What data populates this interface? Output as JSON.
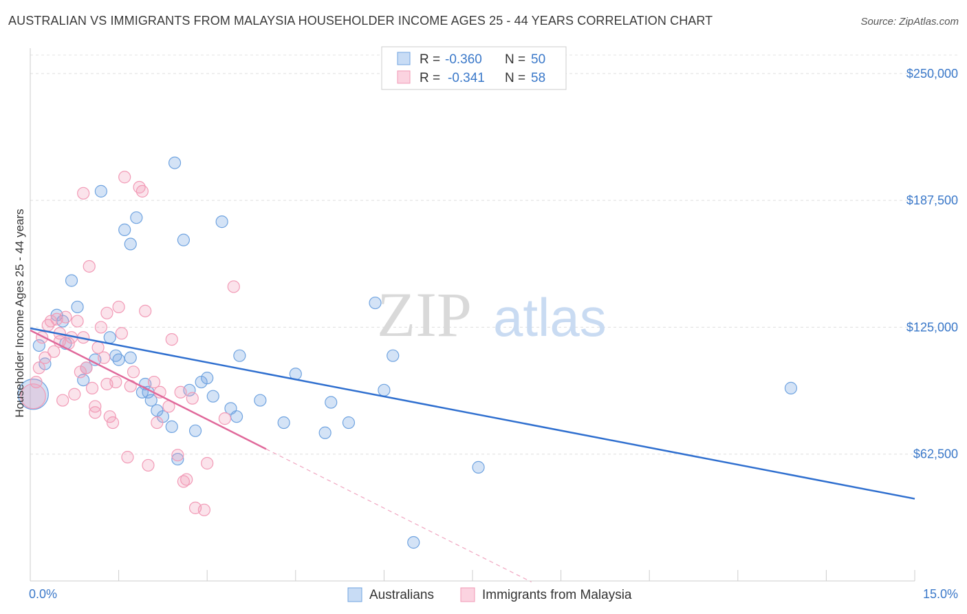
{
  "title": "AUSTRALIAN VS IMMIGRANTS FROM MALAYSIA HOUSEHOLDER INCOME AGES 25 - 44 YEARS CORRELATION CHART",
  "source": "Source: ZipAtlas.com",
  "watermark": {
    "zip": "ZIP",
    "atlas": "atlas"
  },
  "legend": {
    "r_label": "R =",
    "n_label": "N =",
    "series": [
      {
        "r": "-0.360",
        "n": "50",
        "color": "#6fa3e0"
      },
      {
        "r": "-0.341",
        "n": "58",
        "color": "#f29ab6"
      }
    ]
  },
  "chart_data": {
    "type": "scatter",
    "title": "AUSTRALIAN VS IMMIGRANTS FROM MALAYSIA HOUSEHOLDER INCOME AGES 25 - 44 YEARS CORRELATION CHART",
    "xlabel": "",
    "ylabel": "Householder Income Ages 25 - 44 years",
    "xlim": [
      0,
      15
    ],
    "ylim": [
      0,
      262500
    ],
    "x_tick_labels": [
      "0.0%",
      "15.0%"
    ],
    "y_ticks": [
      62500,
      125000,
      187500,
      250000
    ],
    "y_tick_labels": [
      "$62,500",
      "$125,000",
      "$187,500",
      "$250,000"
    ],
    "grid": true,
    "legend_position": "top-center",
    "series": [
      {
        "name": "Australians",
        "color": "#6fa3e0",
        "trend": {
          "x": [
            0.0,
            15.0
          ],
          "y": [
            124500,
            40500
          ]
        },
        "points": [
          {
            "x": 0.05,
            "y": 92000,
            "s": 22
          },
          {
            "x": 0.15,
            "y": 116000
          },
          {
            "x": 0.25,
            "y": 107000
          },
          {
            "x": 0.45,
            "y": 131000
          },
          {
            "x": 0.55,
            "y": 128000
          },
          {
            "x": 0.7,
            "y": 148000
          },
          {
            "x": 0.8,
            "y": 135000
          },
          {
            "x": 0.95,
            "y": 105000
          },
          {
            "x": 0.9,
            "y": 99000
          },
          {
            "x": 1.1,
            "y": 109000
          },
          {
            "x": 1.2,
            "y": 192000
          },
          {
            "x": 1.35,
            "y": 120000
          },
          {
            "x": 1.45,
            "y": 111000
          },
          {
            "x": 1.5,
            "y": 109000
          },
          {
            "x": 1.6,
            "y": 173000
          },
          {
            "x": 1.7,
            "y": 166000
          },
          {
            "x": 1.8,
            "y": 179000
          },
          {
            "x": 1.9,
            "y": 93000
          },
          {
            "x": 1.95,
            "y": 97000
          },
          {
            "x": 2.05,
            "y": 89000
          },
          {
            "x": 2.15,
            "y": 84000
          },
          {
            "x": 2.25,
            "y": 81000
          },
          {
            "x": 2.4,
            "y": 76000
          },
          {
            "x": 2.45,
            "y": 206000
          },
          {
            "x": 2.5,
            "y": 60000
          },
          {
            "x": 2.6,
            "y": 168000
          },
          {
            "x": 2.7,
            "y": 94000
          },
          {
            "x": 2.8,
            "y": 74000
          },
          {
            "x": 2.9,
            "y": 98000
          },
          {
            "x": 3.0,
            "y": 100000
          },
          {
            "x": 3.1,
            "y": 91000
          },
          {
            "x": 3.25,
            "y": 177000
          },
          {
            "x": 3.4,
            "y": 85000
          },
          {
            "x": 3.5,
            "y": 81000
          },
          {
            "x": 3.55,
            "y": 111000
          },
          {
            "x": 3.9,
            "y": 89000
          },
          {
            "x": 4.3,
            "y": 78000
          },
          {
            "x": 4.5,
            "y": 102000
          },
          {
            "x": 5.0,
            "y": 73000
          },
          {
            "x": 5.1,
            "y": 88000
          },
          {
            "x": 5.4,
            "y": 78000
          },
          {
            "x": 5.85,
            "y": 137000
          },
          {
            "x": 6.0,
            "y": 94000
          },
          {
            "x": 6.15,
            "y": 111000
          },
          {
            "x": 7.6,
            "y": 56000
          },
          {
            "x": 6.5,
            "y": 19000
          },
          {
            "x": 1.7,
            "y": 110000
          },
          {
            "x": 0.6,
            "y": 117000
          },
          {
            "x": 2.0,
            "y": 93000
          },
          {
            "x": 12.9,
            "y": 95000
          }
        ]
      },
      {
        "name": "Immigrants from Malaysia",
        "color": "#f29ab6",
        "trend": {
          "x": [
            0.0,
            4.0
          ],
          "y": [
            123500,
            65000
          ]
        },
        "trend_ext": {
          "x": [
            4.0,
            8.5
          ],
          "y": [
            65000,
            -500
          ]
        },
        "points": [
          {
            "x": 0.05,
            "y": 91000,
            "s": 18
          },
          {
            "x": 0.1,
            "y": 98000
          },
          {
            "x": 0.15,
            "y": 105000
          },
          {
            "x": 0.2,
            "y": 120000
          },
          {
            "x": 0.25,
            "y": 110000
          },
          {
            "x": 0.3,
            "y": 126000
          },
          {
            "x": 0.35,
            "y": 128000
          },
          {
            "x": 0.4,
            "y": 113000
          },
          {
            "x": 0.45,
            "y": 129000
          },
          {
            "x": 0.5,
            "y": 118000
          },
          {
            "x": 0.55,
            "y": 89000
          },
          {
            "x": 0.6,
            "y": 130000
          },
          {
            "x": 0.7,
            "y": 120000
          },
          {
            "x": 0.75,
            "y": 92000
          },
          {
            "x": 0.8,
            "y": 128000
          },
          {
            "x": 0.85,
            "y": 103000
          },
          {
            "x": 0.9,
            "y": 120000
          },
          {
            "x": 0.95,
            "y": 105000
          },
          {
            "x": 0.9,
            "y": 191000
          },
          {
            "x": 1.0,
            "y": 155000
          },
          {
            "x": 1.05,
            "y": 95000
          },
          {
            "x": 1.1,
            "y": 86000
          },
          {
            "x": 1.1,
            "y": 83000
          },
          {
            "x": 1.15,
            "y": 115000
          },
          {
            "x": 1.2,
            "y": 125000
          },
          {
            "x": 1.25,
            "y": 110000
          },
          {
            "x": 1.3,
            "y": 132000
          },
          {
            "x": 1.35,
            "y": 81000
          },
          {
            "x": 1.4,
            "y": 78000
          },
          {
            "x": 1.5,
            "y": 135000
          },
          {
            "x": 1.55,
            "y": 122000
          },
          {
            "x": 1.6,
            "y": 199000
          },
          {
            "x": 1.65,
            "y": 61000
          },
          {
            "x": 1.7,
            "y": 96000
          },
          {
            "x": 1.85,
            "y": 194000
          },
          {
            "x": 1.9,
            "y": 192000
          },
          {
            "x": 1.95,
            "y": 133000
          },
          {
            "x": 2.0,
            "y": 57000
          },
          {
            "x": 2.1,
            "y": 98000
          },
          {
            "x": 2.15,
            "y": 78000
          },
          {
            "x": 2.2,
            "y": 93000
          },
          {
            "x": 2.35,
            "y": 86000
          },
          {
            "x": 2.4,
            "y": 119000
          },
          {
            "x": 2.5,
            "y": 62000
          },
          {
            "x": 2.55,
            "y": 93000
          },
          {
            "x": 2.6,
            "y": 49000
          },
          {
            "x": 2.65,
            "y": 50000
          },
          {
            "x": 2.75,
            "y": 90000
          },
          {
            "x": 2.8,
            "y": 36000
          },
          {
            "x": 2.95,
            "y": 35000
          },
          {
            "x": 3.0,
            "y": 58000
          },
          {
            "x": 3.3,
            "y": 80000
          },
          {
            "x": 3.45,
            "y": 145000
          },
          {
            "x": 1.3,
            "y": 97000
          },
          {
            "x": 0.65,
            "y": 117000
          },
          {
            "x": 1.75,
            "y": 103000
          },
          {
            "x": 1.45,
            "y": 98000
          },
          {
            "x": 0.5,
            "y": 122000
          }
        ]
      }
    ]
  },
  "bottom_legend": [
    {
      "label": "Australians",
      "color": "#6fa3e0"
    },
    {
      "label": "Immigrants from Malaysia",
      "color": "#f29ab6"
    }
  ]
}
